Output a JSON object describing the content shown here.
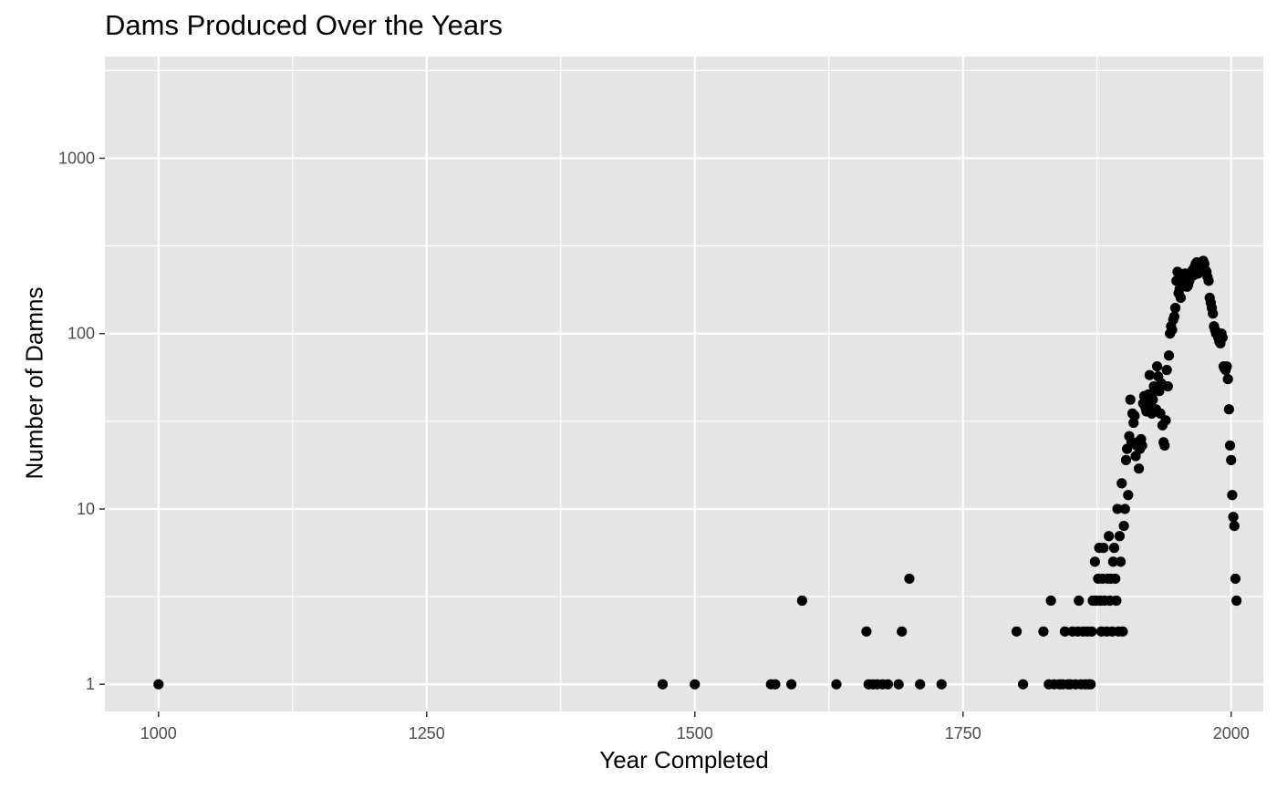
{
  "chart_data": {
    "type": "scatter",
    "title": "Dams Produced Over the Years",
    "xlabel": "Year Completed",
    "ylabel": "Number of Damns",
    "xlim": [
      950,
      2030
    ],
    "ylim": [
      0.7,
      3800
    ],
    "y_scale": "log10",
    "x_ticks": [
      1000,
      1250,
      1500,
      1750,
      2000
    ],
    "x_tick_labels": [
      "1000",
      "1250",
      "1500",
      "1750",
      "2000"
    ],
    "y_ticks": [
      1,
      10,
      100,
      1000
    ],
    "y_tick_labels": [
      "1",
      "10",
      "100",
      "1000"
    ],
    "grid": true,
    "legend": "none",
    "colors": {
      "panel": "#e5e5e5",
      "grid": "#ffffff",
      "point": "#000000",
      "tick": "#4d4d4d"
    },
    "points": [
      [
        1000,
        1
      ],
      [
        1470,
        1
      ],
      [
        1500,
        1
      ],
      [
        1571,
        1
      ],
      [
        1575,
        1
      ],
      [
        1590,
        1
      ],
      [
        1600,
        3
      ],
      [
        1632,
        1
      ],
      [
        1660,
        2
      ],
      [
        1662,
        1
      ],
      [
        1666,
        1
      ],
      [
        1670,
        1
      ],
      [
        1675,
        1
      ],
      [
        1680,
        1
      ],
      [
        1690,
        1
      ],
      [
        1693,
        2
      ],
      [
        1700,
        4
      ],
      [
        1710,
        1
      ],
      [
        1730,
        1
      ],
      [
        1800,
        2
      ],
      [
        1806,
        1
      ],
      [
        1825,
        2
      ],
      [
        1830,
        1
      ],
      [
        1832,
        3
      ],
      [
        1835,
        1
      ],
      [
        1840,
        1
      ],
      [
        1843,
        1
      ],
      [
        1845,
        2
      ],
      [
        1848,
        1
      ],
      [
        1850,
        1
      ],
      [
        1852,
        2
      ],
      [
        1855,
        1
      ],
      [
        1857,
        2
      ],
      [
        1858,
        3
      ],
      [
        1860,
        1
      ],
      [
        1862,
        2
      ],
      [
        1864,
        1
      ],
      [
        1866,
        2
      ],
      [
        1867,
        1
      ],
      [
        1869,
        1
      ],
      [
        1870,
        2
      ],
      [
        1871,
        3
      ],
      [
        1873,
        5
      ],
      [
        1874,
        3
      ],
      [
        1876,
        4
      ],
      [
        1877,
        6
      ],
      [
        1878,
        3
      ],
      [
        1879,
        2
      ],
      [
        1880,
        4
      ],
      [
        1881,
        6
      ],
      [
        1882,
        3
      ],
      [
        1884,
        2
      ],
      [
        1885,
        4
      ],
      [
        1886,
        7
      ],
      [
        1887,
        3
      ],
      [
        1888,
        4
      ],
      [
        1889,
        2
      ],
      [
        1890,
        5
      ],
      [
        1891,
        6
      ],
      [
        1892,
        4
      ],
      [
        1893,
        3
      ],
      [
        1894,
        10
      ],
      [
        1895,
        2
      ],
      [
        1896,
        7
      ],
      [
        1897,
        5
      ],
      [
        1898,
        14
      ],
      [
        1899,
        2
      ],
      [
        1900,
        8
      ],
      [
        1901,
        10
      ],
      [
        1902,
        19
      ],
      [
        1903,
        22
      ],
      [
        1904,
        12
      ],
      [
        1905,
        26
      ],
      [
        1906,
        42
      ],
      [
        1907,
        24
      ],
      [
        1908,
        35
      ],
      [
        1909,
        31
      ],
      [
        1910,
        34
      ],
      [
        1911,
        20
      ],
      [
        1912,
        23
      ],
      [
        1913,
        24
      ],
      [
        1914,
        17
      ],
      [
        1915,
        22
      ],
      [
        1916,
        25
      ],
      [
        1917,
        23
      ],
      [
        1918,
        40
      ],
      [
        1919,
        44
      ],
      [
        1920,
        38
      ],
      [
        1921,
        36
      ],
      [
        1922,
        43
      ],
      [
        1923,
        45
      ],
      [
        1924,
        58
      ],
      [
        1925,
        38
      ],
      [
        1926,
        35
      ],
      [
        1927,
        42
      ],
      [
        1928,
        50
      ],
      [
        1929,
        47
      ],
      [
        1930,
        37
      ],
      [
        1931,
        65
      ],
      [
        1932,
        57
      ],
      [
        1933,
        47
      ],
      [
        1934,
        35
      ],
      [
        1935,
        52
      ],
      [
        1936,
        30
      ],
      [
        1937,
        24
      ],
      [
        1938,
        23
      ],
      [
        1939,
        32
      ],
      [
        1940,
        62
      ],
      [
        1941,
        50
      ],
      [
        1942,
        75
      ],
      [
        1943,
        100
      ],
      [
        1944,
        110
      ],
      [
        1945,
        105
      ],
      [
        1946,
        120
      ],
      [
        1947,
        125
      ],
      [
        1948,
        140
      ],
      [
        1949,
        200
      ],
      [
        1950,
        225
      ],
      [
        1951,
        170
      ],
      [
        1952,
        180
      ],
      [
        1953,
        160
      ],
      [
        1954,
        210
      ],
      [
        1955,
        190
      ],
      [
        1956,
        195
      ],
      [
        1957,
        220
      ],
      [
        1958,
        200
      ],
      [
        1959,
        185
      ],
      [
        1960,
        190
      ],
      [
        1961,
        200
      ],
      [
        1962,
        210
      ],
      [
        1963,
        220
      ],
      [
        1964,
        230
      ],
      [
        1965,
        215
      ],
      [
        1966,
        240
      ],
      [
        1967,
        250
      ],
      [
        1968,
        255
      ],
      [
        1969,
        220
      ],
      [
        1970,
        240
      ],
      [
        1971,
        225
      ],
      [
        1972,
        235
      ],
      [
        1973,
        245
      ],
      [
        1974,
        260
      ],
      [
        1975,
        250
      ],
      [
        1976,
        230
      ],
      [
        1977,
        225
      ],
      [
        1978,
        210
      ],
      [
        1979,
        200
      ],
      [
        1980,
        160
      ],
      [
        1981,
        150
      ],
      [
        1982,
        140
      ],
      [
        1983,
        130
      ],
      [
        1984,
        110
      ],
      [
        1985,
        105
      ],
      [
        1986,
        100
      ],
      [
        1987,
        100
      ],
      [
        1988,
        95
      ],
      [
        1989,
        90
      ],
      [
        1990,
        88
      ],
      [
        1991,
        100
      ],
      [
        1992,
        95
      ],
      [
        1993,
        65
      ],
      [
        1994,
        63
      ],
      [
        1995,
        62
      ],
      [
        1996,
        65
      ],
      [
        1997,
        55
      ],
      [
        1998,
        37
      ],
      [
        1999,
        23
      ],
      [
        2000,
        19
      ],
      [
        2001,
        12
      ],
      [
        2002,
        9
      ],
      [
        2003,
        8
      ],
      [
        2004,
        4
      ],
      [
        2005,
        3
      ]
    ]
  }
}
